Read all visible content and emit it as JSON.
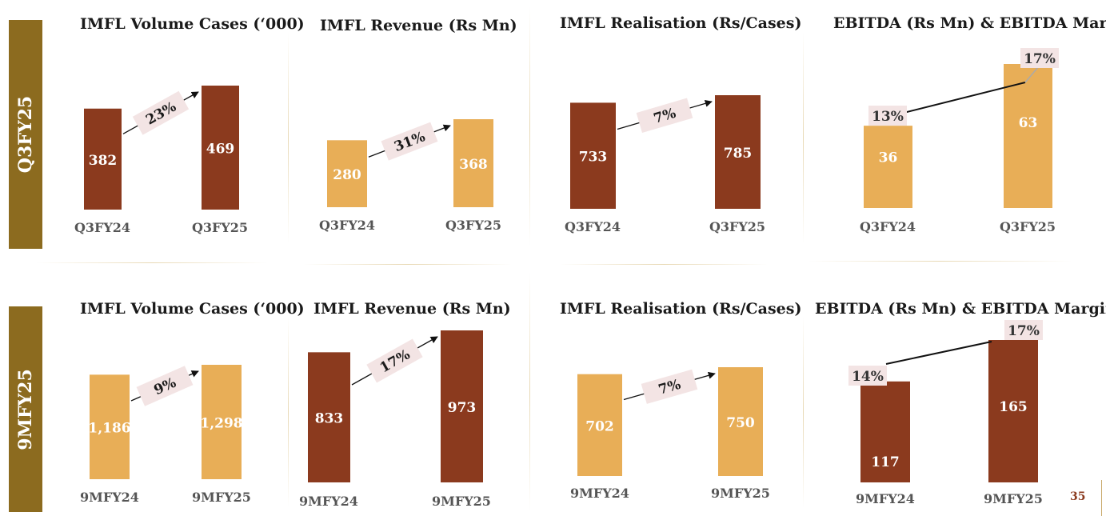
{
  "colors": {
    "dark_bar": "#8B3A1E",
    "light_bar": "#E8AE57",
    "tab": "#8C6B1F",
    "badge_bg": "#F3E4E4",
    "axis_text": "#555555",
    "bar_text": "#ffffff",
    "divider": "#E8D9B5"
  },
  "sections": [
    {
      "label": "Q3FY25"
    },
    {
      "label": "9MFY25"
    }
  ],
  "page_number": "35",
  "chart_data": [
    {
      "type": "bar",
      "title": "IMFL Volume Cases (‘000)",
      "categories": [
        "Q3FY24",
        "Q3FY25"
      ],
      "values": [
        382,
        469
      ],
      "value_labels": [
        "382",
        "469"
      ],
      "change_label": "23%",
      "bar_color": "#8B3A1E"
    },
    {
      "type": "bar",
      "title": "IMFL Revenue (Rs Mn)",
      "categories": [
        "Q3FY24",
        "Q3FY25"
      ],
      "values": [
        280,
        368
      ],
      "value_labels": [
        "280",
        "368"
      ],
      "change_label": "31%",
      "bar_color": "#E8AE57"
    },
    {
      "type": "bar",
      "title": "IMFL Realisation (Rs/Cases)",
      "categories": [
        "Q3FY24",
        "Q3FY25"
      ],
      "values": [
        733,
        785
      ],
      "value_labels": [
        "733",
        "785"
      ],
      "change_label": "7%",
      "bar_color": "#8B3A1E"
    },
    {
      "type": "bar",
      "title": "EBITDA (Rs Mn) & EBITDA Margin %",
      "categories": [
        "Q3FY24",
        "Q3FY25"
      ],
      "values": [
        36,
        63
      ],
      "value_labels": [
        "36",
        "63"
      ],
      "margin_values": [
        13,
        17
      ],
      "margin_labels": [
        "13%",
        "17%"
      ],
      "bar_color": "#E8AE57"
    },
    {
      "type": "bar",
      "title": "IMFL Volume Cases (‘000)",
      "categories": [
        "9MFY24",
        "9MFY25"
      ],
      "values": [
        1186,
        1298
      ],
      "value_labels": [
        "1,186",
        "1,298"
      ],
      "change_label": "9%",
      "bar_color": "#E8AE57"
    },
    {
      "type": "bar",
      "title": "IMFL Revenue (Rs Mn)",
      "categories": [
        "9MFY24",
        "9MFY25"
      ],
      "values": [
        833,
        973
      ],
      "value_labels": [
        "833",
        "973"
      ],
      "change_label": "17%",
      "bar_color": "#8B3A1E"
    },
    {
      "type": "bar",
      "title": "IMFL Realisation (Rs/Cases)",
      "categories": [
        "9MFY24",
        "9MFY25"
      ],
      "values": [
        702,
        750
      ],
      "value_labels": [
        "702",
        "750"
      ],
      "change_label": "7%",
      "bar_color": "#E8AE57"
    },
    {
      "type": "bar",
      "title": "EBITDA (Rs Mn) & EBITDA Margin %",
      "categories": [
        "9MFY24",
        "9MFY25"
      ],
      "values": [
        117,
        165
      ],
      "value_labels": [
        "117",
        "165"
      ],
      "margin_values": [
        14,
        17
      ],
      "margin_labels": [
        "14%",
        "17%"
      ],
      "bar_color": "#8B3A1E"
    }
  ]
}
